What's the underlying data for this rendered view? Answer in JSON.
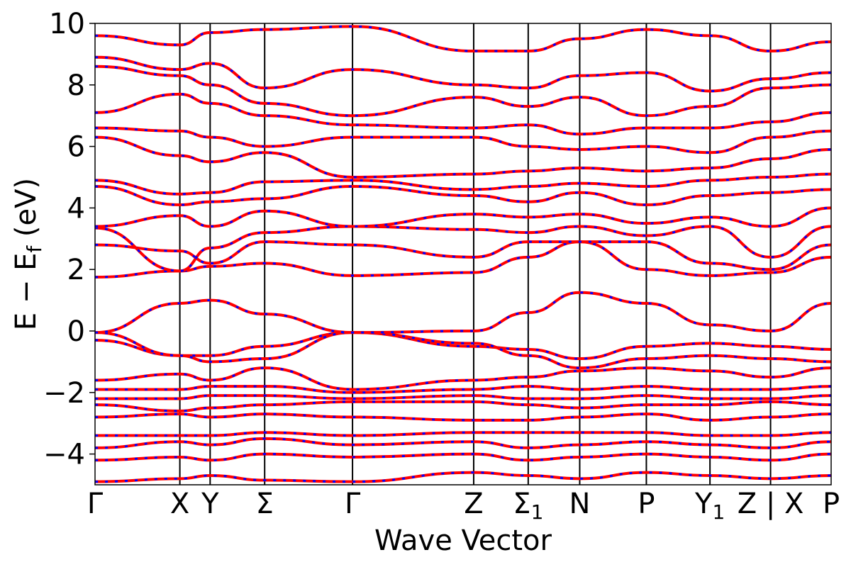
{
  "chart_data": {
    "type": "line",
    "xlabel": "Wave Vector",
    "ylabel": "E − E",
    "ylabel_sub": "f",
    "ylabel_unit": " (eV)",
    "ylim": [
      -5,
      10
    ],
    "y_ticks": [
      -4,
      -2,
      0,
      2,
      4,
      6,
      8,
      10
    ],
    "y_tick_labels": [
      "−4",
      "−2",
      "0",
      "2",
      "4",
      "6",
      "8",
      "10"
    ],
    "x_range": [
      0,
      20
    ],
    "high_symmetry_points": [
      {
        "label": "Γ",
        "x": 0
      },
      {
        "label": "X",
        "x": 2.8
      },
      {
        "label": "Y",
        "x": 3.8
      },
      {
        "label": "Σ",
        "x": 5.6
      },
      {
        "label": "Γ",
        "x": 8.5
      },
      {
        "label": "Z",
        "x": 12.5
      },
      {
        "label": "Σ",
        "sub": "1",
        "x": 14.3
      },
      {
        "label": "N",
        "x": 16.0
      },
      {
        "label": "P",
        "x": 18.2
      },
      {
        "label": "Y",
        "sub": "1",
        "x": 20.3
      },
      {
        "label": "Z | X",
        "x": 22.3
      },
      {
        "label": "P",
        "x": 24.3
      }
    ],
    "x_max": 24.3,
    "series": [
      {
        "style": "solid",
        "color": "#ff0000"
      },
      {
        "style": "dashed",
        "color": "#0000ff"
      }
    ],
    "bands": [
      {
        "x": [
          0,
          2.8,
          3.8,
          5.6,
          8.5,
          12.5,
          14.3,
          16.0,
          18.2,
          20.3,
          22.3,
          24.3
        ],
        "y": [
          -4.9,
          -4.8,
          -4.7,
          -4.85,
          -4.9,
          -4.6,
          -4.7,
          -4.8,
          -4.6,
          -4.7,
          -4.8,
          -4.7
        ]
      },
      {
        "x": [
          0,
          2.8,
          3.8,
          5.6,
          8.5,
          12.5,
          14.3,
          16.0,
          18.2,
          20.3,
          22.3,
          24.3
        ],
        "y": [
          -4.2,
          -4.1,
          -4.2,
          -4.0,
          -4.1,
          -4.0,
          -4.2,
          -4.1,
          -4.0,
          -4.1,
          -4.2,
          -4.0
        ]
      },
      {
        "x": [
          0,
          2.8,
          3.8,
          5.6,
          8.5,
          12.5,
          14.3,
          16.0,
          18.2,
          20.3,
          22.3,
          24.3
        ],
        "y": [
          -3.8,
          -3.6,
          -3.7,
          -3.5,
          -3.7,
          -3.6,
          -3.8,
          -3.7,
          -3.6,
          -3.7,
          -3.8,
          -3.6
        ]
      },
      {
        "x": [
          0,
          2.8,
          3.8,
          5.6,
          8.5,
          12.5,
          14.3,
          16.0,
          18.2,
          20.3,
          22.3,
          24.3
        ],
        "y": [
          -3.4,
          -3.4,
          -3.4,
          -3.3,
          -3.4,
          -3.3,
          -3.3,
          -3.3,
          -3.3,
          -3.4,
          -3.4,
          -3.3
        ]
      },
      {
        "x": [
          0,
          2.8,
          3.8,
          5.6,
          8.5,
          12.5,
          14.3,
          16.0,
          18.2,
          20.3,
          22.3,
          24.3
        ],
        "y": [
          -2.8,
          -2.7,
          -2.8,
          -2.7,
          -2.8,
          -2.9,
          -2.9,
          -2.8,
          -2.7,
          -2.9,
          -2.8,
          -2.7
        ]
      },
      {
        "x": [
          0,
          2.8,
          3.8,
          5.6,
          8.5,
          12.5,
          14.3,
          16.0,
          18.2,
          20.3,
          22.3,
          24.3
        ],
        "y": [
          -2.4,
          -2.6,
          -2.5,
          -2.4,
          -2.3,
          -2.3,
          -2.4,
          -2.5,
          -2.4,
          -2.4,
          -2.3,
          -2.4
        ]
      },
      {
        "x": [
          0,
          2.8,
          3.8,
          5.6,
          8.5,
          12.5,
          14.3,
          16.0,
          18.2,
          20.3,
          22.3,
          24.3
        ],
        "y": [
          -2.2,
          -2.2,
          -2.1,
          -2.1,
          -2.2,
          -2.1,
          -2.2,
          -2.2,
          -2.1,
          -2.2,
          -2.2,
          -2.1
        ]
      },
      {
        "x": [
          0,
          2.8,
          3.8,
          5.6,
          8.5,
          12.5,
          14.3,
          16.0,
          18.2,
          20.3,
          22.3,
          24.3
        ],
        "y": [
          -1.9,
          -1.9,
          -1.8,
          -1.8,
          -2.0,
          -1.9,
          -1.8,
          -1.9,
          -1.8,
          -1.9,
          -1.9,
          -1.8
        ]
      },
      {
        "x": [
          0,
          2.8,
          3.8,
          5.6,
          8.5,
          12.5,
          14.3,
          16.0,
          18.2,
          20.3,
          22.3,
          24.3
        ],
        "y": [
          -1.6,
          -1.4,
          -1.6,
          -1.2,
          -1.9,
          -1.6,
          -1.5,
          -1.3,
          -1.2,
          -1.3,
          -1.5,
          -1.2
        ]
      },
      {
        "x": [
          0,
          2.8,
          3.8,
          5.6,
          8.5,
          12.5,
          14.3,
          16.0,
          18.2,
          20.3,
          22.3,
          24.3
        ],
        "y": [
          -0.3,
          -0.8,
          -0.8,
          -0.5,
          -0.05,
          -0.5,
          -0.6,
          -0.9,
          -0.5,
          -0.4,
          -0.5,
          -0.6
        ]
      },
      {
        "x": [
          0,
          2.8,
          3.8,
          5.6,
          8.5,
          12.5,
          14.3,
          16.0,
          18.2,
          20.3,
          22.3,
          24.3
        ],
        "y": [
          -0.05,
          -0.8,
          -1.0,
          -0.9,
          -0.05,
          -0.4,
          -0.8,
          -1.2,
          -0.9,
          -0.8,
          -0.9,
          -1.0
        ]
      },
      {
        "x": [
          0,
          2.8,
          3.8,
          5.6,
          8.5,
          12.5,
          14.3,
          16.0,
          18.2,
          20.3,
          22.3,
          24.3
        ],
        "y": [
          -0.05,
          0.9,
          1.0,
          0.55,
          -0.05,
          0.0,
          0.6,
          1.25,
          0.9,
          0.2,
          0.0,
          0.9
        ]
      },
      {
        "x": [
          0,
          2.8,
          3.8,
          5.6,
          8.5,
          12.5,
          14.3,
          16.0,
          18.2,
          20.3,
          22.3,
          24.3
        ],
        "y": [
          1.75,
          1.95,
          2.1,
          2.2,
          1.8,
          1.9,
          2.4,
          2.9,
          2.0,
          1.8,
          1.9,
          2.4
        ]
      },
      {
        "x": [
          0,
          2.8,
          3.8,
          5.6,
          8.5,
          12.5,
          14.3,
          16.0,
          18.2,
          20.3,
          22.3,
          24.3
        ],
        "y": [
          2.8,
          2.6,
          2.2,
          2.9,
          2.8,
          2.4,
          2.9,
          2.9,
          2.9,
          2.2,
          2.0,
          2.8
        ]
      },
      {
        "x": [
          0,
          2.8,
          3.8,
          5.6,
          8.5,
          12.5,
          14.3,
          16.0,
          18.2,
          20.3,
          22.3,
          24.3
        ],
        "y": [
          3.35,
          1.95,
          2.7,
          3.2,
          3.4,
          3.3,
          3.2,
          3.4,
          3.1,
          3.4,
          2.4,
          3.4
        ]
      },
      {
        "x": [
          0,
          2.8,
          3.8,
          5.6,
          8.5,
          12.5,
          14.3,
          16.0,
          18.2,
          20.3,
          22.3,
          24.3
        ],
        "y": [
          3.4,
          3.75,
          3.4,
          3.9,
          3.4,
          3.8,
          3.7,
          3.8,
          3.5,
          3.7,
          3.4,
          4.0
        ]
      },
      {
        "x": [
          0,
          2.8,
          3.8,
          5.6,
          8.5,
          12.5,
          14.3,
          16.0,
          18.2,
          20.3,
          22.3,
          24.3
        ],
        "y": [
          4.7,
          4.1,
          4.2,
          4.3,
          4.7,
          4.4,
          4.2,
          4.5,
          4.1,
          4.4,
          4.5,
          4.6
        ]
      },
      {
        "x": [
          0,
          2.8,
          3.8,
          5.6,
          8.5,
          12.5,
          14.3,
          16.0,
          18.2,
          20.3,
          22.3,
          24.3
        ],
        "y": [
          4.9,
          4.45,
          4.5,
          4.85,
          4.9,
          4.6,
          4.7,
          4.8,
          4.7,
          4.9,
          5.0,
          5.1
        ]
      },
      {
        "x": [
          0,
          2.8,
          3.8,
          5.6,
          8.5,
          12.5,
          14.3,
          16.0,
          18.2,
          20.3,
          22.3,
          24.3
        ],
        "y": [
          6.3,
          5.7,
          5.5,
          5.8,
          5.0,
          5.1,
          5.2,
          5.3,
          5.2,
          5.3,
          5.6,
          5.9
        ]
      },
      {
        "x": [
          0,
          2.8,
          3.8,
          5.6,
          8.5,
          12.5,
          14.3,
          16.0,
          18.2,
          20.3,
          22.3,
          24.3
        ],
        "y": [
          6.6,
          6.5,
          6.3,
          6.0,
          6.3,
          6.3,
          6.0,
          5.9,
          6.0,
          5.8,
          6.3,
          6.5
        ]
      },
      {
        "x": [
          0,
          2.8,
          3.8,
          5.6,
          8.5,
          12.5,
          14.3,
          16.0,
          18.2,
          20.3,
          22.3,
          24.3
        ],
        "y": [
          7.1,
          7.7,
          7.4,
          7.0,
          6.7,
          6.6,
          6.7,
          6.4,
          6.6,
          6.6,
          6.8,
          7.1
        ]
      },
      {
        "x": [
          0,
          2.8,
          3.8,
          5.6,
          8.5,
          12.5,
          14.3,
          16.0,
          18.2,
          20.3,
          22.3,
          24.3
        ],
        "y": [
          8.6,
          8.3,
          8.0,
          7.4,
          7.0,
          7.6,
          7.3,
          7.6,
          7.0,
          7.3,
          7.9,
          8.0
        ]
      },
      {
        "x": [
          0,
          2.8,
          3.8,
          5.6,
          8.5,
          12.5,
          14.3,
          16.0,
          18.2,
          20.3,
          22.3,
          24.3
        ],
        "y": [
          8.9,
          8.5,
          8.7,
          7.9,
          8.5,
          8.0,
          7.9,
          8.3,
          8.4,
          7.8,
          8.2,
          8.4
        ]
      },
      {
        "x": [
          0,
          2.8,
          3.8,
          5.6,
          8.5,
          12.5,
          14.3,
          16.0,
          18.2,
          20.3,
          22.3,
          24.3
        ],
        "y": [
          9.6,
          9.3,
          9.7,
          9.8,
          9.9,
          9.1,
          9.1,
          9.5,
          9.8,
          9.6,
          9.1,
          9.4
        ]
      }
    ]
  }
}
